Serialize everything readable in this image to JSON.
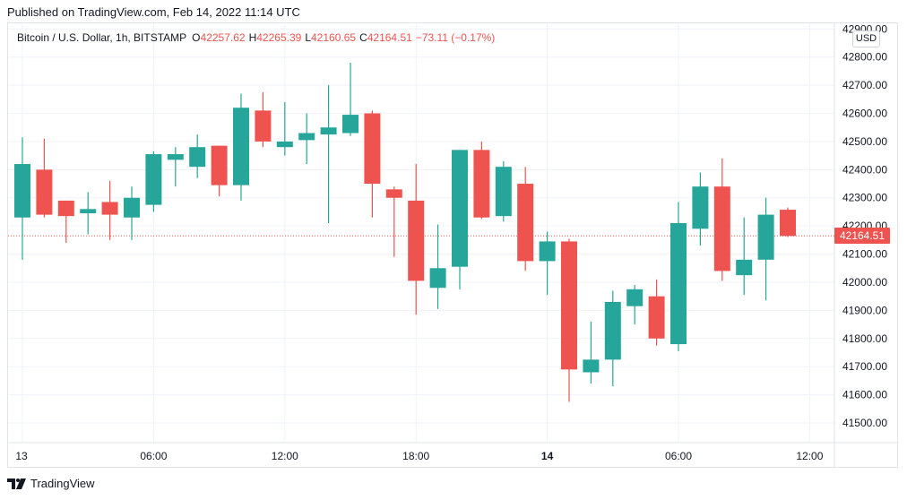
{
  "published": "Published on TradingView.com, Feb 14, 2022 11:14 UTC",
  "legend": {
    "symbol": "Bitcoin / U.S. Dollar, 1h, BITSTAMP",
    "o_label": "O",
    "o_value": "42257.62",
    "h_label": "H",
    "h_value": "42265.39",
    "l_label": "L",
    "l_value": "42160.65",
    "c_label": "C",
    "c_value": "42164.51",
    "change": "−73.11 (−0.17%)"
  },
  "currency": "USD",
  "last_price_label": "42164.51",
  "logo_text": "TradingView",
  "colors": {
    "up": "#26a69a",
    "down": "#ef5350",
    "grid": "#f0f3fa",
    "axis_text": "#131722"
  },
  "chart_data": {
    "type": "candlestick",
    "ylim": [
      41430,
      42920
    ],
    "y_ticks": [
      "41500.00",
      "41600.00",
      "41700.00",
      "41800.00",
      "41900.00",
      "42000.00",
      "42100.00",
      "42200.00",
      "42300.00",
      "42400.00",
      "42500.00",
      "42600.00",
      "42700.00",
      "42800.00",
      "42900.00"
    ],
    "x_ticks": [
      {
        "label": "13",
        "bar": 0,
        "bold": false
      },
      {
        "label": "06:00",
        "bar": 6,
        "bold": false
      },
      {
        "label": "12:00",
        "bar": 12,
        "bold": false
      },
      {
        "label": "18:00",
        "bar": 18,
        "bold": false
      },
      {
        "label": "14",
        "bar": 24,
        "bold": true
      },
      {
        "label": "06:00",
        "bar": 30,
        "bold": false
      },
      {
        "label": "12:00",
        "bar": 36,
        "bold": false
      }
    ],
    "last_price": 42164.51,
    "candles": [
      {
        "o": 42230,
        "h": 42515,
        "l": 42080,
        "c": 42420
      },
      {
        "o": 42400,
        "h": 42510,
        "l": 42230,
        "c": 42240
      },
      {
        "o": 42290,
        "h": 42290,
        "l": 42140,
        "c": 42235
      },
      {
        "o": 42245,
        "h": 42320,
        "l": 42170,
        "c": 42260
      },
      {
        "o": 42285,
        "h": 42360,
        "l": 42150,
        "c": 42240
      },
      {
        "o": 42230,
        "h": 42340,
        "l": 42150,
        "c": 42300
      },
      {
        "o": 42275,
        "h": 42465,
        "l": 42250,
        "c": 42455
      },
      {
        "o": 42435,
        "h": 42480,
        "l": 42340,
        "c": 42455
      },
      {
        "o": 42410,
        "h": 42525,
        "l": 42370,
        "c": 42480
      },
      {
        "o": 42485,
        "h": 42485,
        "l": 42305,
        "c": 42345
      },
      {
        "o": 42345,
        "h": 42670,
        "l": 42290,
        "c": 42620
      },
      {
        "o": 42610,
        "h": 42675,
        "l": 42480,
        "c": 42500
      },
      {
        "o": 42480,
        "h": 42640,
        "l": 42450,
        "c": 42500
      },
      {
        "o": 42505,
        "h": 42600,
        "l": 42420,
        "c": 42530
      },
      {
        "o": 42525,
        "h": 42700,
        "l": 42210,
        "c": 42550
      },
      {
        "o": 42530,
        "h": 42780,
        "l": 42520,
        "c": 42595
      },
      {
        "o": 42600,
        "h": 42610,
        "l": 42230,
        "c": 42350
      },
      {
        "o": 42330,
        "h": 42340,
        "l": 42090,
        "c": 42300
      },
      {
        "o": 42290,
        "h": 42420,
        "l": 41885,
        "c": 42005
      },
      {
        "o": 41980,
        "h": 42205,
        "l": 41905,
        "c": 42050
      },
      {
        "o": 42055,
        "h": 42470,
        "l": 41975,
        "c": 42470
      },
      {
        "o": 42470,
        "h": 42500,
        "l": 42225,
        "c": 42230
      },
      {
        "o": 42235,
        "h": 42430,
        "l": 42215,
        "c": 42410
      },
      {
        "o": 42350,
        "h": 42410,
        "l": 42040,
        "c": 42075
      },
      {
        "o": 42075,
        "h": 42180,
        "l": 41955,
        "c": 42145
      },
      {
        "o": 42145,
        "h": 42155,
        "l": 41575,
        "c": 41690
      },
      {
        "o": 41680,
        "h": 41860,
        "l": 41640,
        "c": 41725
      },
      {
        "o": 41725,
        "h": 41970,
        "l": 41630,
        "c": 41930
      },
      {
        "o": 41915,
        "h": 41990,
        "l": 41850,
        "c": 41975
      },
      {
        "o": 41950,
        "h": 42010,
        "l": 41775,
        "c": 41800
      },
      {
        "o": 41780,
        "h": 42285,
        "l": 41755,
        "c": 42210
      },
      {
        "o": 42190,
        "h": 42390,
        "l": 42130,
        "c": 42340
      },
      {
        "o": 42340,
        "h": 42440,
        "l": 42005,
        "c": 42040
      },
      {
        "o": 42025,
        "h": 42230,
        "l": 41955,
        "c": 42080
      },
      {
        "o": 42080,
        "h": 42300,
        "l": 41935,
        "c": 42240
      },
      {
        "o": 42257.62,
        "h": 42265.39,
        "l": 42160.65,
        "c": 42164.51
      }
    ]
  }
}
